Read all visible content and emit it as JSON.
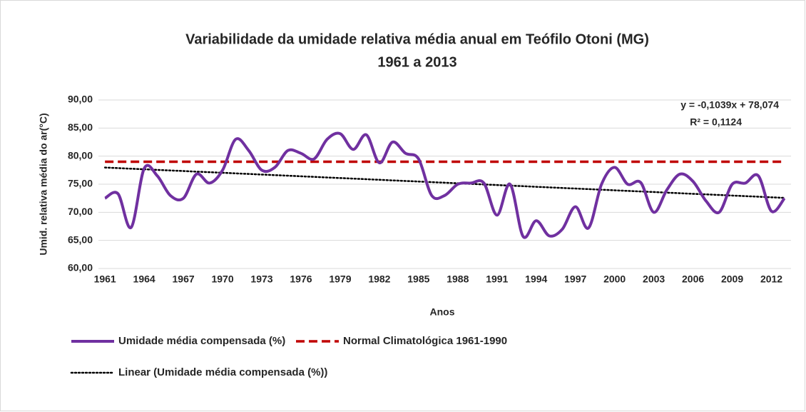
{
  "chart_data": {
    "type": "line",
    "title": "Variabilidade da umidade relativa média anual em Teófilo Otoni (MG)",
    "subtitle": "1961 a 2013",
    "x_label": "Anos",
    "y_label": "Umid. relativa média do ar(°C)",
    "annotations": [
      "y = -0,1039x + 78,074",
      "R² = 0,1124"
    ],
    "x": [
      1961,
      1962,
      1963,
      1964,
      1965,
      1966,
      1967,
      1968,
      1969,
      1970,
      1971,
      1972,
      1973,
      1974,
      1975,
      1976,
      1977,
      1978,
      1979,
      1980,
      1981,
      1982,
      1983,
      1984,
      1985,
      1986,
      1987,
      1988,
      1989,
      1990,
      1991,
      1992,
      1993,
      1994,
      1995,
      1996,
      1997,
      1998,
      1999,
      2000,
      2001,
      2002,
      2003,
      2004,
      2005,
      2006,
      2007,
      2008,
      2009,
      2010,
      2011,
      2012,
      2013
    ],
    "xlim": [
      1960.5,
      2013.5
    ],
    "xticks": [
      1961,
      1964,
      1967,
      1970,
      1973,
      1976,
      1979,
      1982,
      1985,
      1988,
      1991,
      1994,
      1997,
      2000,
      2003,
      2006,
      2009,
      2012
    ],
    "ylim": [
      60,
      90
    ],
    "yticks": [
      {
        "value": 60,
        "label": "60,00"
      },
      {
        "value": 65,
        "label": "65,00"
      },
      {
        "value": 70,
        "label": "70,00"
      },
      {
        "value": 75,
        "label": "75,00"
      },
      {
        "value": 80,
        "label": "80,00"
      },
      {
        "value": 85,
        "label": "85,00"
      },
      {
        "value": 90,
        "label": "90,00"
      }
    ],
    "grid": true,
    "series": [
      {
        "name": "Umidade média compensada (%)",
        "color": "#7030a0",
        "style": "solid",
        "smooth": true,
        "values": [
          72.5,
          73.3,
          67.3,
          77.8,
          76.5,
          73.0,
          72.5,
          76.8,
          75.2,
          77.5,
          83.0,
          81.0,
          77.5,
          78.0,
          81.0,
          80.5,
          79.5,
          83.0,
          84.0,
          81.2,
          83.8,
          78.8,
          82.5,
          80.5,
          79.5,
          73.0,
          73.0,
          75.0,
          75.2,
          75.2,
          69.5,
          75.0,
          65.7,
          68.5,
          65.8,
          67.0,
          71.0,
          67.2,
          75.0,
          78.0,
          75.0,
          75.3,
          70.0,
          74.0,
          76.8,
          75.5,
          72.0,
          70.0,
          75.0,
          75.2,
          76.5,
          70.2,
          72.5
        ]
      },
      {
        "name": "Normal Climatológica 1961-1990",
        "color": "#c00000",
        "style": "dashed",
        "smooth": false,
        "values": [
          79,
          79,
          79,
          79,
          79,
          79,
          79,
          79,
          79,
          79,
          79,
          79,
          79,
          79,
          79,
          79,
          79,
          79,
          79,
          79,
          79,
          79,
          79,
          79,
          79,
          79,
          79,
          79,
          79,
          79,
          79,
          79,
          79,
          79,
          79,
          79,
          79,
          79,
          79,
          79,
          79,
          79,
          79,
          79,
          79,
          79,
          79,
          79,
          79,
          79,
          79,
          79,
          79
        ]
      },
      {
        "name": "Linear (Umidade média compensada (%))",
        "color": "#000000",
        "style": "dotted",
        "smooth": false,
        "values": [
          77.97,
          77.87,
          77.76,
          77.66,
          77.55,
          77.45,
          77.35,
          77.24,
          77.14,
          77.04,
          76.93,
          76.83,
          76.72,
          76.62,
          76.52,
          76.41,
          76.31,
          76.2,
          76.1,
          76.0,
          75.89,
          75.79,
          75.68,
          75.58,
          75.48,
          75.37,
          75.27,
          75.17,
          75.06,
          74.96,
          74.85,
          74.75,
          74.65,
          74.54,
          74.44,
          74.33,
          74.23,
          74.13,
          74.02,
          73.92,
          73.81,
          73.71,
          73.61,
          73.5,
          73.4,
          73.29,
          73.19,
          73.09,
          72.98,
          72.88,
          72.78,
          72.67,
          72.57
        ]
      }
    ]
  }
}
